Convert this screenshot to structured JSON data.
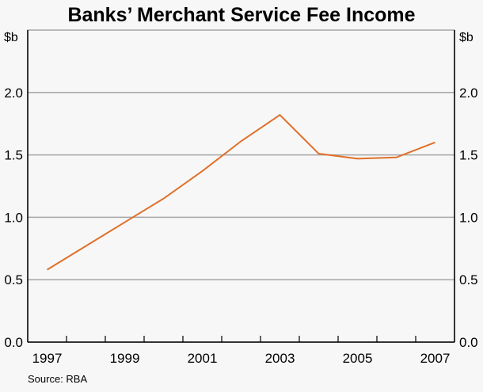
{
  "chart_data": {
    "type": "line",
    "title": "Banks’ Merchant Service Fee Income",
    "ylabel_left": "$b",
    "ylabel_right": "$b",
    "source": "Source: RBA",
    "x": [
      1997,
      1998,
      1999,
      2000,
      2001,
      2002,
      2003,
      2004,
      2005,
      2006,
      2007
    ],
    "series": [
      {
        "values": [
          0.58,
          0.77,
          0.96,
          1.15,
          1.37,
          1.61,
          1.82,
          1.51,
          1.47,
          1.48,
          1.6
        ],
        "color": "#e0702a"
      }
    ],
    "xlim": [
      1996.5,
      2007.5
    ],
    "ylim": [
      0,
      2.5
    ],
    "yticks": [
      "0.0",
      "0.5",
      "1.0",
      "1.5",
      "2.0"
    ],
    "xtick_labels": [
      "1997",
      "1999",
      "2001",
      "2003",
      "2005",
      "2007"
    ],
    "grid": true,
    "colors": {
      "background": "#f7f7f7",
      "grid": "#a6a6a6",
      "axis": "#000000"
    }
  }
}
